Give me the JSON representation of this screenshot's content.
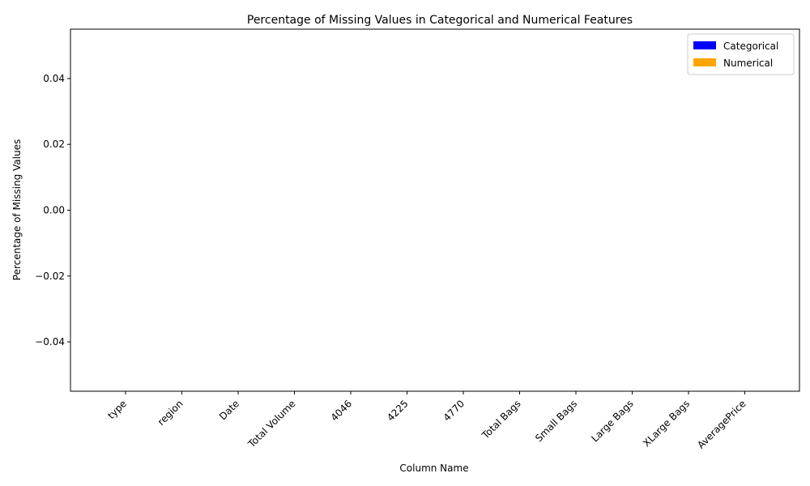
{
  "chart_data": {
    "type": "bar",
    "title": "Percentage of Missing Values in Categorical and Numerical Features",
    "xlabel": "Column Name",
    "ylabel": "Percentage of Missing Values",
    "categories": [
      "type",
      "region",
      "Date",
      "Total Volume",
      "4046",
      "4225",
      "4770",
      "Total Bags",
      "Small Bags",
      "Large Bags",
      "XLarge Bags",
      "AveragePrice"
    ],
    "series": [
      {
        "name": "Categorical",
        "color": "#0000ff",
        "values": [
          0,
          0,
          0,
          0,
          0,
          0,
          0,
          0,
          0,
          0,
          0,
          0
        ]
      },
      {
        "name": "Numerical",
        "color": "#ffa500",
        "values": [
          0,
          0,
          0,
          0,
          0,
          0,
          0,
          0,
          0,
          0,
          0,
          0
        ]
      }
    ],
    "ylim": [
      -0.055,
      0.055
    ],
    "yticks": [
      -0.04,
      -0.02,
      0.0,
      0.02,
      0.04
    ],
    "ytick_labels": [
      "−0.04",
      "−0.02",
      "0.00",
      "0.02",
      "0.04"
    ],
    "legend_position": "top-right",
    "grid": false
  }
}
